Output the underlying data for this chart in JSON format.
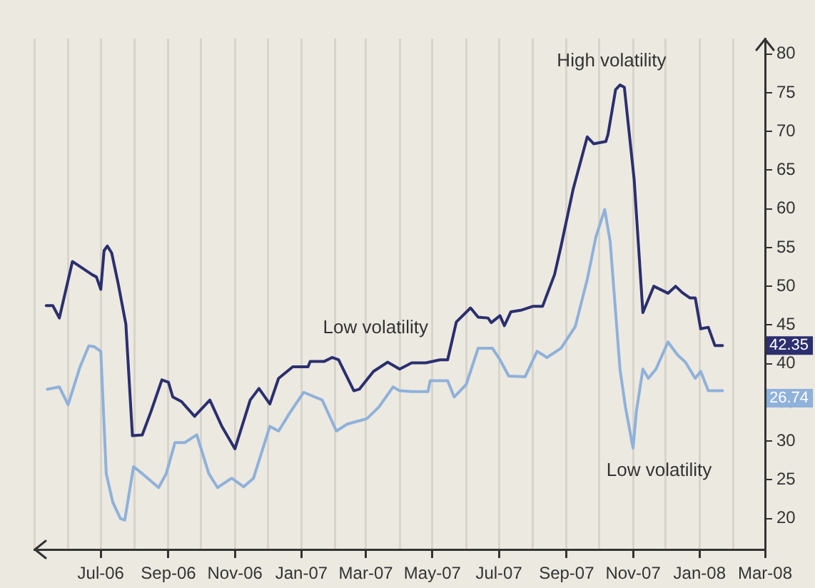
{
  "chart_data": {
    "type": "line",
    "xlim": [
      "2006-05-01",
      "2008-03-01"
    ],
    "xticks": [
      {
        "value": "2006-05-01",
        "label": null
      },
      {
        "value": "2006-06-01",
        "label": null
      },
      {
        "value": "2006-07-01",
        "label": "Jul-06"
      },
      {
        "value": "2006-08-01",
        "label": null
      },
      {
        "value": "2006-09-01",
        "label": "Sep-06"
      },
      {
        "value": "2006-10-01",
        "label": null
      },
      {
        "value": "2006-11-01",
        "label": "Nov-06"
      },
      {
        "value": "2006-12-01",
        "label": null
      },
      {
        "value": "2007-01-01",
        "label": "Jan-07"
      },
      {
        "value": "2007-02-01",
        "label": null
      },
      {
        "value": "2007-03-01",
        "label": "Mar-07"
      },
      {
        "value": "2007-04-01",
        "label": null
      },
      {
        "value": "2007-05-01",
        "label": "May-07"
      },
      {
        "value": "2007-06-01",
        "label": null
      },
      {
        "value": "2007-07-01",
        "label": "Jul-07"
      },
      {
        "value": "2007-08-01",
        "label": null
      },
      {
        "value": "2007-09-01",
        "label": "Sep-07"
      },
      {
        "value": "2007-10-01",
        "label": null
      },
      {
        "value": "2007-11-01",
        "label": "Nov-07"
      },
      {
        "value": "2007-12-01",
        "label": null
      },
      {
        "value": "2008-01-01",
        "label": "Jan-08"
      },
      {
        "value": "2008-02-01",
        "label": null
      },
      {
        "value": "2008-03-01",
        "label": "Mar-08"
      }
    ],
    "ylim": [
      16,
      82
    ],
    "yticks": [
      20,
      25,
      30,
      35,
      40,
      45,
      50,
      55,
      60,
      65,
      70,
      75,
      80
    ],
    "grid": "x",
    "legend": false,
    "marker": "none",
    "line_style": "solid",
    "series": [
      {
        "color": "#2b2f6e",
        "x": [
          "2006-05-12",
          "2006-05-18",
          "2006-05-24",
          "2006-06-05",
          "2006-06-23",
          "2006-06-27",
          "2006-07-01",
          "2006-07-04",
          "2006-07-07",
          "2006-07-11",
          "2006-07-17",
          "2006-07-24",
          "2006-07-30",
          "2006-08-08",
          "2006-08-16",
          "2006-08-26",
          "2006-09-01",
          "2006-09-05",
          "2006-09-13",
          "2006-09-25",
          "2006-10-09",
          "2006-10-20",
          "2006-11-01",
          "2006-11-15",
          "2006-11-23",
          "2006-12-03",
          "2006-12-11",
          "2006-12-24",
          "2007-01-07",
          "2007-01-09",
          "2007-01-22",
          "2007-01-29",
          "2007-02-04",
          "2007-02-18",
          "2007-02-23",
          "2007-03-08",
          "2007-03-21",
          "2007-04-01",
          "2007-04-12",
          "2007-04-25",
          "2007-05-08",
          "2007-05-15",
          "2007-05-23",
          "2007-06-05",
          "2007-06-12",
          "2007-06-21",
          "2007-06-24",
          "2007-07-02",
          "2007-07-06",
          "2007-07-12",
          "2007-07-21",
          "2007-08-01",
          "2007-08-10",
          "2007-08-21",
          "2007-08-27",
          "2007-09-07",
          "2007-09-20",
          "2007-09-26",
          "2007-10-07",
          "2007-10-09",
          "2007-10-16",
          "2007-10-20",
          "2007-10-24",
          "2007-11-02",
          "2007-11-10",
          "2007-11-20",
          "2007-12-03",
          "2007-12-10",
          "2007-12-16",
          "2007-12-23",
          "2007-12-28",
          "2008-01-02",
          "2008-01-09",
          "2008-01-15",
          "2008-01-22"
        ],
        "values": [
          47.5,
          47.5,
          45.9,
          53.2,
          51.5,
          51.2,
          49.6,
          54.6,
          55.2,
          54.3,
          50.3,
          45.1,
          30.7,
          30.8,
          33.8,
          37.9,
          37.6,
          35.7,
          35.1,
          33.2,
          35.3,
          31.9,
          29.0,
          35.3,
          36.8,
          34.8,
          38.1,
          39.6,
          39.6,
          40.3,
          40.3,
          40.8,
          40.5,
          36.5,
          36.7,
          39.0,
          40.2,
          39.3,
          40.1,
          40.1,
          40.5,
          40.5,
          45.4,
          47.2,
          46.0,
          45.9,
          45.3,
          46.2,
          44.9,
          46.7,
          46.9,
          47.4,
          47.4,
          51.5,
          55.2,
          62.5,
          69.3,
          68.4,
          68.7,
          69.6,
          75.4,
          76.0,
          75.7,
          63.8,
          46.6,
          50.0,
          49.1,
          50.0,
          49.2,
          48.5,
          48.5,
          44.5,
          44.7,
          42.35,
          42.35
        ]
      },
      {
        "color": "#8fb1da",
        "x": [
          "2006-05-13",
          "2006-05-24",
          "2006-06-01",
          "2006-06-12",
          "2006-06-20",
          "2006-06-25",
          "2006-07-01",
          "2006-07-06",
          "2006-07-12",
          "2006-07-19",
          "2006-07-23",
          "2006-07-31",
          "2006-08-08",
          "2006-08-23",
          "2006-08-30",
          "2006-09-07",
          "2006-09-16",
          "2006-09-27",
          "2006-10-08",
          "2006-10-16",
          "2006-10-29",
          "2006-11-09",
          "2006-11-18",
          "2006-12-03",
          "2006-12-11",
          "2006-12-22",
          "2007-01-03",
          "2007-01-20",
          "2007-02-02",
          "2007-02-12",
          "2007-03-02",
          "2007-03-13",
          "2007-03-26",
          "2007-04-01",
          "2007-04-12",
          "2007-04-27",
          "2007-04-29",
          "2007-05-15",
          "2007-05-21",
          "2007-06-01",
          "2007-06-12",
          "2007-06-25",
          "2007-07-02",
          "2007-07-10",
          "2007-07-25",
          "2007-08-05",
          "2007-08-14",
          "2007-08-27",
          "2007-09-09",
          "2007-09-20",
          "2007-09-28",
          "2007-10-06",
          "2007-10-11",
          "2007-10-20",
          "2007-10-25",
          "2007-11-01",
          "2007-11-04",
          "2007-11-10",
          "2007-11-15",
          "2007-11-22",
          "2007-12-03",
          "2007-12-12",
          "2007-12-19",
          "2007-12-28",
          "2008-01-02",
          "2008-01-09",
          "2008-01-22"
        ],
        "values": [
          36.7,
          37.0,
          34.7,
          39.6,
          42.3,
          42.2,
          41.6,
          25.8,
          22.1,
          20.0,
          19.8,
          26.7,
          25.8,
          24.0,
          25.8,
          29.8,
          29.8,
          30.8,
          25.8,
          24.0,
          25.2,
          24.1,
          25.2,
          31.9,
          31.3,
          33.8,
          36.3,
          35.3,
          31.3,
          32.2,
          32.9,
          34.4,
          37.0,
          36.5,
          36.4,
          36.4,
          37.8,
          37.8,
          35.7,
          37.3,
          42.0,
          42.0,
          40.5,
          38.4,
          38.3,
          41.6,
          40.8,
          42.0,
          44.8,
          50.9,
          56.4,
          59.9,
          55.8,
          39.3,
          34.4,
          29.1,
          33.8,
          39.3,
          38.1,
          39.3,
          42.8,
          41.1,
          40.2,
          38.1,
          39.0,
          36.5,
          36.5
        ]
      }
    ],
    "annotations": [
      "High volatility",
      "Low volatility",
      "Low volatility",
      {
        "text": "42.35",
        "x": "2008-01-22",
        "y": 42.35
      },
      {
        "text": "26.74",
        "x": "2008-01-22",
        "y": 36.5
      }
    ]
  }
}
